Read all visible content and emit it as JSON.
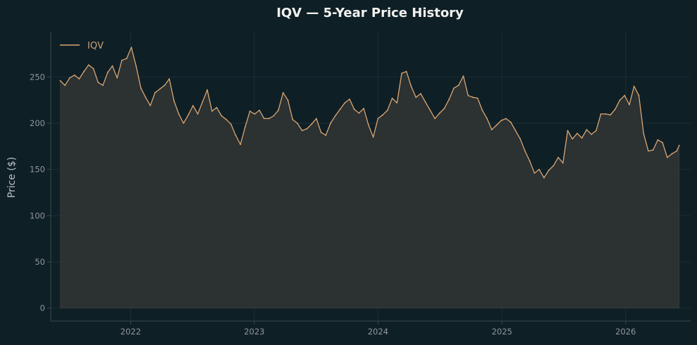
{
  "chart_data": {
    "type": "area",
    "title": "IQV — 5-Year Price History",
    "xlabel": "",
    "ylabel": "Price ($)",
    "xlim": [
      "2021-05-10",
      "2026-07-12"
    ],
    "ylim": [
      -14,
      299
    ],
    "yticks": [
      0,
      50,
      100,
      150,
      200,
      250
    ],
    "xticks": [
      "2022-01-01",
      "2023-01-01",
      "2024-01-01",
      "2025-01-01",
      "2026-01-01"
    ],
    "xtick_labels": [
      "2022",
      "2023",
      "2024",
      "2025",
      "2026"
    ],
    "grid": true,
    "legend": {
      "position": "top-left"
    },
    "colors": {
      "background": "#0f1f26",
      "line": "#d9a671",
      "fill": "#2e3333"
    },
    "series": [
      {
        "name": "IQV",
        "x": [
          "2021-06-07",
          "2021-06-21",
          "2021-07-05",
          "2021-07-19",
          "2021-08-02",
          "2021-08-16",
          "2021-08-30",
          "2021-09-13",
          "2021-09-27",
          "2021-10-11",
          "2021-10-25",
          "2021-11-08",
          "2021-11-22",
          "2021-12-06",
          "2021-12-20",
          "2022-01-03",
          "2022-01-17",
          "2022-01-31",
          "2022-02-14",
          "2022-02-28",
          "2022-03-14",
          "2022-03-28",
          "2022-04-11",
          "2022-04-25",
          "2022-05-09",
          "2022-05-23",
          "2022-06-06",
          "2022-06-20",
          "2022-07-04",
          "2022-07-18",
          "2022-08-01",
          "2022-08-15",
          "2022-08-29",
          "2022-09-12",
          "2022-09-26",
          "2022-10-10",
          "2022-10-24",
          "2022-11-07",
          "2022-11-21",
          "2022-12-05",
          "2022-12-19",
          "2023-01-02",
          "2023-01-16",
          "2023-01-30",
          "2023-02-13",
          "2023-02-27",
          "2023-03-13",
          "2023-03-27",
          "2023-04-10",
          "2023-04-24",
          "2023-05-08",
          "2023-05-22",
          "2023-06-05",
          "2023-06-19",
          "2023-07-03",
          "2023-07-17",
          "2023-07-31",
          "2023-08-14",
          "2023-08-28",
          "2023-09-11",
          "2023-09-25",
          "2023-10-09",
          "2023-10-23",
          "2023-11-06",
          "2023-11-20",
          "2023-12-04",
          "2023-12-18",
          "2024-01-01",
          "2024-01-15",
          "2024-01-29",
          "2024-02-12",
          "2024-02-26",
          "2024-03-11",
          "2024-03-25",
          "2024-04-08",
          "2024-04-22",
          "2024-05-06",
          "2024-05-20",
          "2024-06-03",
          "2024-06-17",
          "2024-07-01",
          "2024-07-15",
          "2024-07-29",
          "2024-08-12",
          "2024-08-26",
          "2024-09-09",
          "2024-09-23",
          "2024-10-07",
          "2024-10-21",
          "2024-11-04",
          "2024-11-18",
          "2024-12-02",
          "2024-12-16",
          "2024-12-30",
          "2025-01-13",
          "2025-01-27",
          "2025-02-10",
          "2025-02-24",
          "2025-03-10",
          "2025-03-24",
          "2025-04-07",
          "2025-04-21",
          "2025-05-05",
          "2025-05-19",
          "2025-06-02",
          "2025-06-16",
          "2025-06-30",
          "2025-07-14",
          "2025-07-28",
          "2025-08-11",
          "2025-08-25",
          "2025-09-08",
          "2025-09-22",
          "2025-10-06",
          "2025-10-20",
          "2025-11-03",
          "2025-11-17",
          "2025-12-01",
          "2025-12-15",
          "2025-12-29",
          "2026-01-12",
          "2026-01-26",
          "2026-02-09",
          "2026-02-23",
          "2026-03-09",
          "2026-03-23",
          "2026-04-06",
          "2026-04-20",
          "2026-05-04",
          "2026-05-18",
          "2026-06-01",
          "2026-06-08"
        ],
        "values": [
          246,
          241,
          249,
          252,
          248,
          256,
          263,
          259,
          244,
          241,
          255,
          262,
          249,
          268,
          270,
          282,
          262,
          238,
          228,
          219,
          233,
          237,
          241,
          248,
          224,
          210,
          200,
          209,
          219,
          210,
          223,
          236,
          213,
          217,
          208,
          204,
          199,
          187,
          177,
          196,
          213,
          210,
          214,
          205,
          205,
          208,
          214,
          233,
          225,
          204,
          200,
          192,
          194,
          199,
          205,
          190,
          187,
          200,
          208,
          215,
          222,
          226,
          215,
          211,
          216,
          198,
          185,
          205,
          209,
          214,
          227,
          222,
          254,
          256,
          240,
          228,
          232,
          223,
          214,
          205,
          211,
          216,
          226,
          238,
          241,
          251,
          230,
          228,
          227,
          214,
          205,
          193,
          198,
          203,
          205,
          201,
          192,
          183,
          170,
          159,
          146,
          150,
          141,
          149,
          154,
          163,
          157,
          192,
          183,
          189,
          184,
          193,
          188,
          192,
          210,
          210,
          209,
          215,
          225,
          230,
          220,
          240,
          230,
          189,
          170,
          171,
          182,
          179,
          163,
          167,
          170,
          176
        ],
        "label_values": [],
        "show_legend_label": true
      }
    ]
  }
}
